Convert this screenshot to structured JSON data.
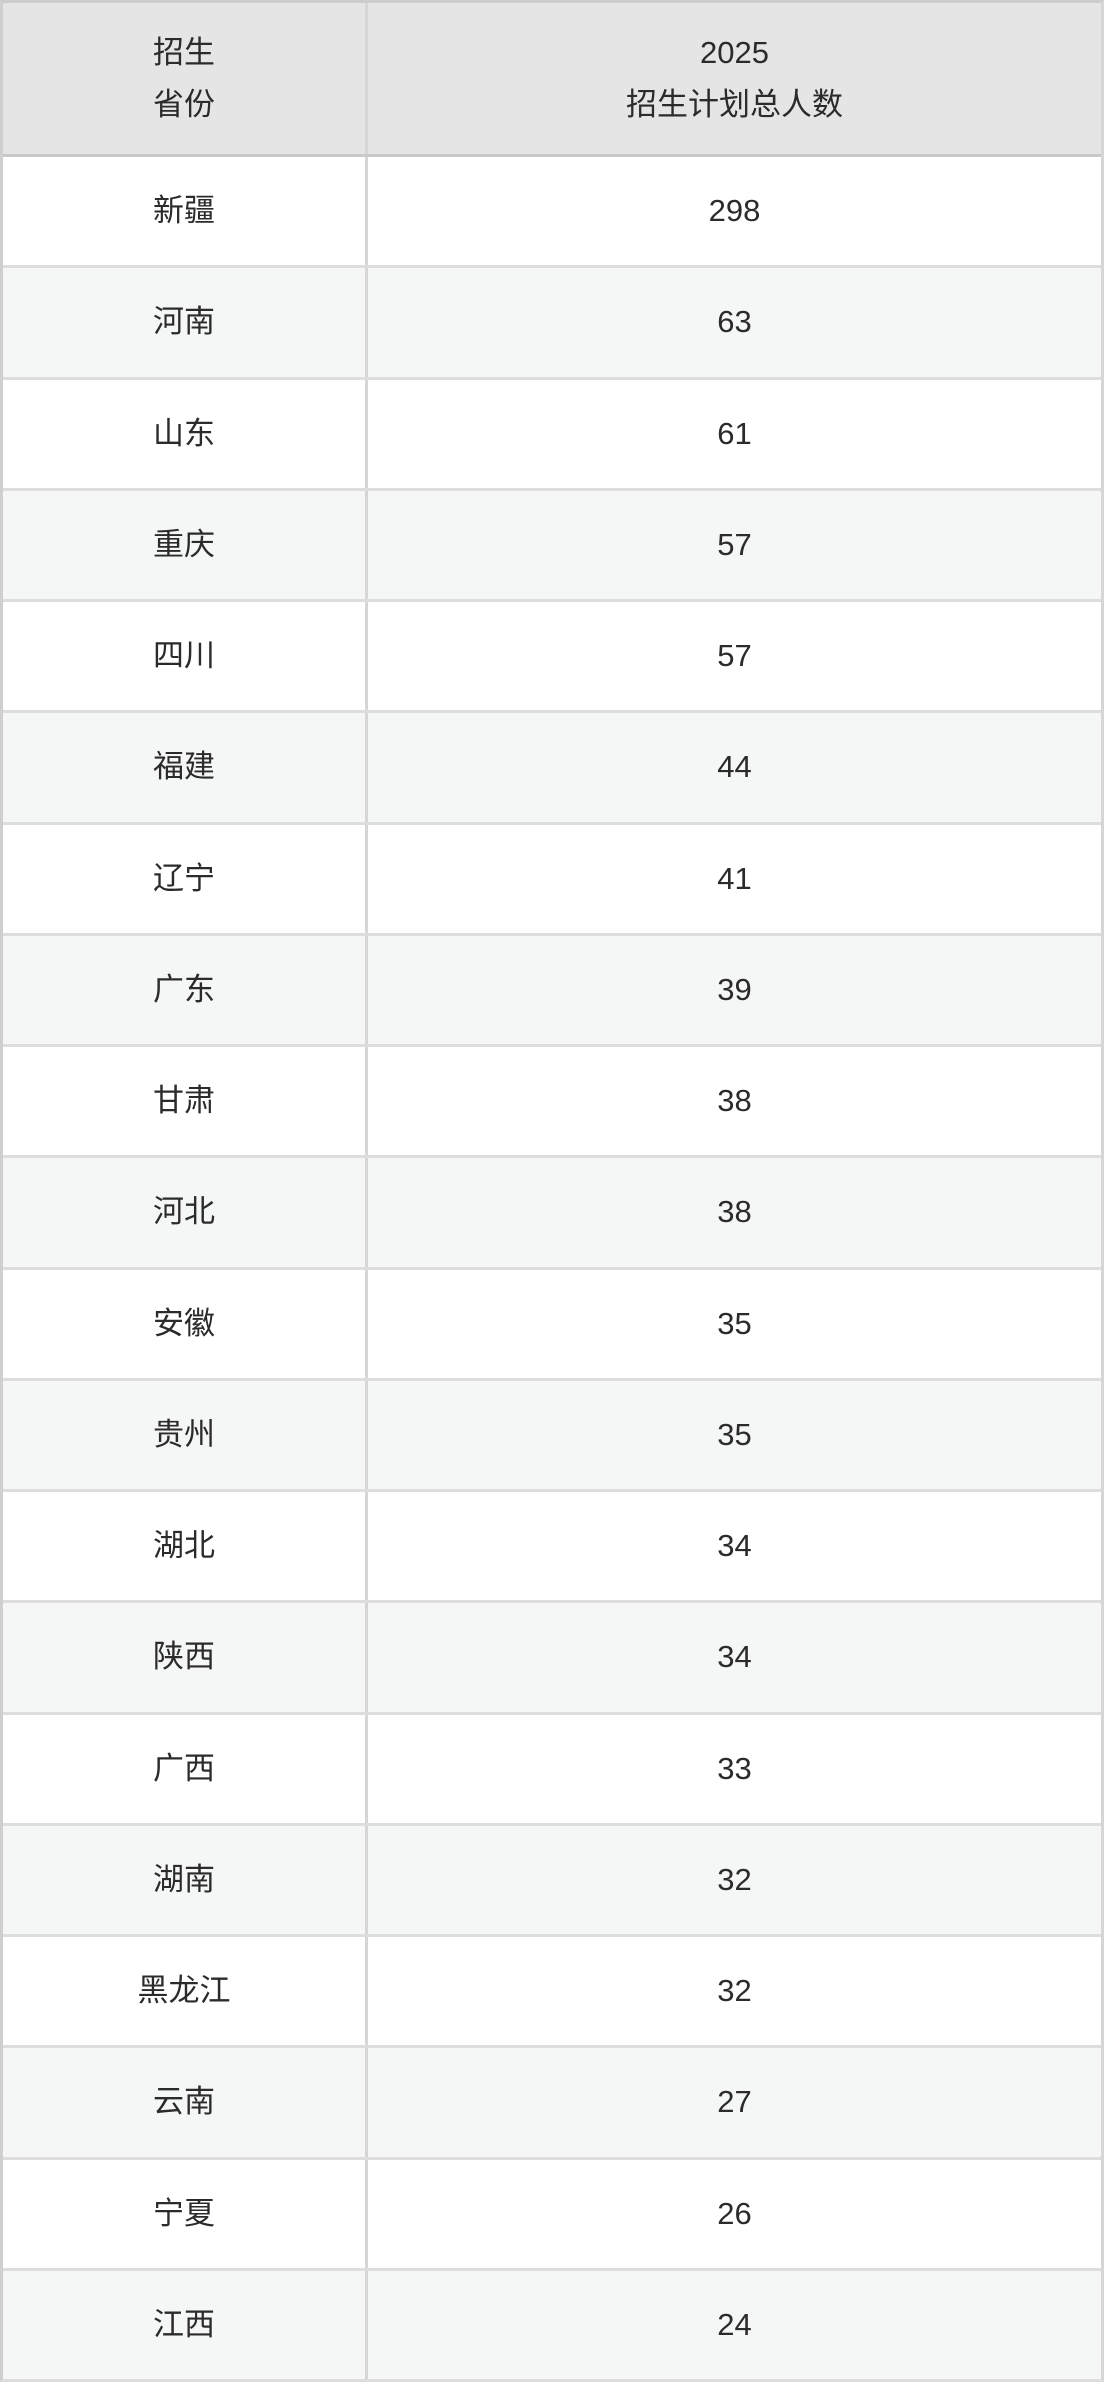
{
  "table": {
    "header": {
      "province_lines": [
        "招生",
        "省份"
      ],
      "total_lines": [
        "2025",
        "招生计划总人数"
      ]
    },
    "rows": [
      {
        "province": "新疆",
        "total": "298"
      },
      {
        "province": "河南",
        "total": "63"
      },
      {
        "province": "山东",
        "total": "61"
      },
      {
        "province": "重庆",
        "total": "57"
      },
      {
        "province": "四川",
        "total": "57"
      },
      {
        "province": "福建",
        "total": "44"
      },
      {
        "province": "辽宁",
        "total": "41"
      },
      {
        "province": "广东",
        "total": "39"
      },
      {
        "province": "甘肃",
        "total": "38"
      },
      {
        "province": "河北",
        "total": "38"
      },
      {
        "province": "安徽",
        "total": "35"
      },
      {
        "province": "贵州",
        "total": "35"
      },
      {
        "province": "湖北",
        "total": "34"
      },
      {
        "province": "陕西",
        "total": "34"
      },
      {
        "province": "广西",
        "total": "33"
      },
      {
        "province": "湖南",
        "total": "32"
      },
      {
        "province": "黑龙江",
        "total": "32"
      },
      {
        "province": "云南",
        "total": "27"
      },
      {
        "province": "宁夏",
        "total": "26"
      },
      {
        "province": "江西",
        "total": "24"
      }
    ]
  },
  "chart_data": {
    "type": "table",
    "columns": [
      "招生省份",
      "2025招生计划总人数"
    ],
    "rows": [
      [
        "新疆",
        298
      ],
      [
        "河南",
        63
      ],
      [
        "山东",
        61
      ],
      [
        "重庆",
        57
      ],
      [
        "四川",
        57
      ],
      [
        "福建",
        44
      ],
      [
        "辽宁",
        41
      ],
      [
        "广东",
        39
      ],
      [
        "甘肃",
        38
      ],
      [
        "河北",
        38
      ],
      [
        "安徽",
        35
      ],
      [
        "贵州",
        35
      ],
      [
        "湖北",
        34
      ],
      [
        "陕西",
        34
      ],
      [
        "广西",
        33
      ],
      [
        "湖南",
        32
      ],
      [
        "黑龙江",
        32
      ],
      [
        "云南",
        27
      ],
      [
        "宁夏",
        26
      ],
      [
        "江西",
        24
      ]
    ],
    "layout_hints": {
      "zebra_striping": true,
      "header_row": true,
      "text_align": "center"
    }
  },
  "colors": {
    "header_bg": "#e5e5e5",
    "row_bg": "#ffffff",
    "row_stripe_bg": "#f5f6f6",
    "border": "#d6d6d6",
    "row_divider": "#dddddd",
    "text": "#2b2b2b"
  }
}
